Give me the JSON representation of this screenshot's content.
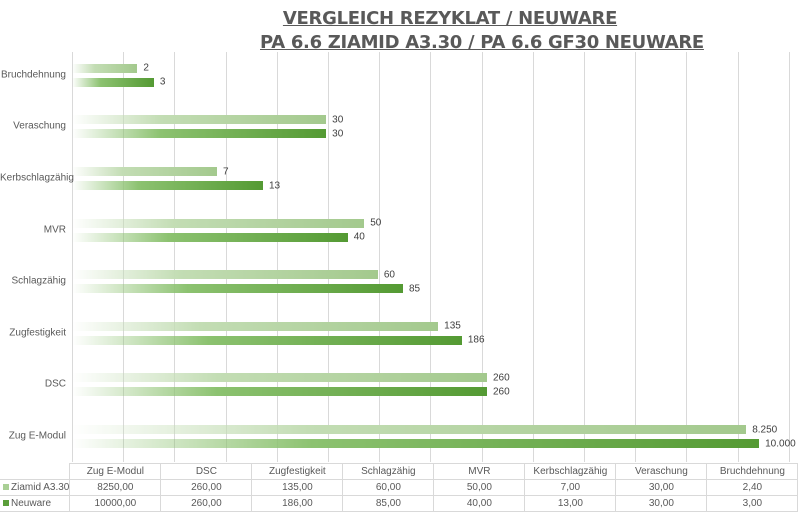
{
  "chart_data": {
    "type": "bar",
    "orientation": "horizontal",
    "title": [
      "VERGLEICH REZYKLAT / NEUWARE",
      "PA 6.6 ZIAMID A3.30 / PA 6.6 GF30 NEUWARE"
    ],
    "categories": [
      "Zug E-Modul",
      "DSC",
      "Zugfestigkeit",
      "Schlagzähig",
      "MVR",
      "Kerbschlagzähig",
      "Veraschung",
      "Bruchdehnung"
    ],
    "series": [
      {
        "name": "Ziamid A3.30",
        "color": "#a9cf95",
        "values": [
          8250,
          260,
          135,
          60,
          50,
          7,
          30,
          2.4
        ],
        "data_labels": [
          "8.250",
          "260",
          "135",
          "60",
          "50",
          "7",
          "30",
          "2"
        ],
        "table_values": [
          "8250,00",
          "260,00",
          "135,00",
          "60,00",
          "50,00",
          "7,00",
          "30,00",
          "2,40"
        ],
        "display_fraction": [
          0.939,
          0.578,
          0.51,
          0.426,
          0.407,
          0.202,
          0.354,
          0.091
        ]
      },
      {
        "name": "Neuware",
        "color": "#5a9e3a",
        "values": [
          10000,
          260,
          186,
          85,
          40,
          13,
          30,
          3
        ],
        "data_labels": [
          "10.000",
          "260",
          "186",
          "85",
          "40",
          "13",
          "30",
          "3"
        ],
        "table_values": [
          "10000,00",
          "260,00",
          "186,00",
          "85,00",
          "40,00",
          "13,00",
          "30,00",
          "3,00"
        ],
        "display_fraction": [
          0.957,
          0.578,
          0.543,
          0.461,
          0.384,
          0.266,
          0.354,
          0.114
        ]
      }
    ],
    "grid": true,
    "legend": "data-table"
  }
}
